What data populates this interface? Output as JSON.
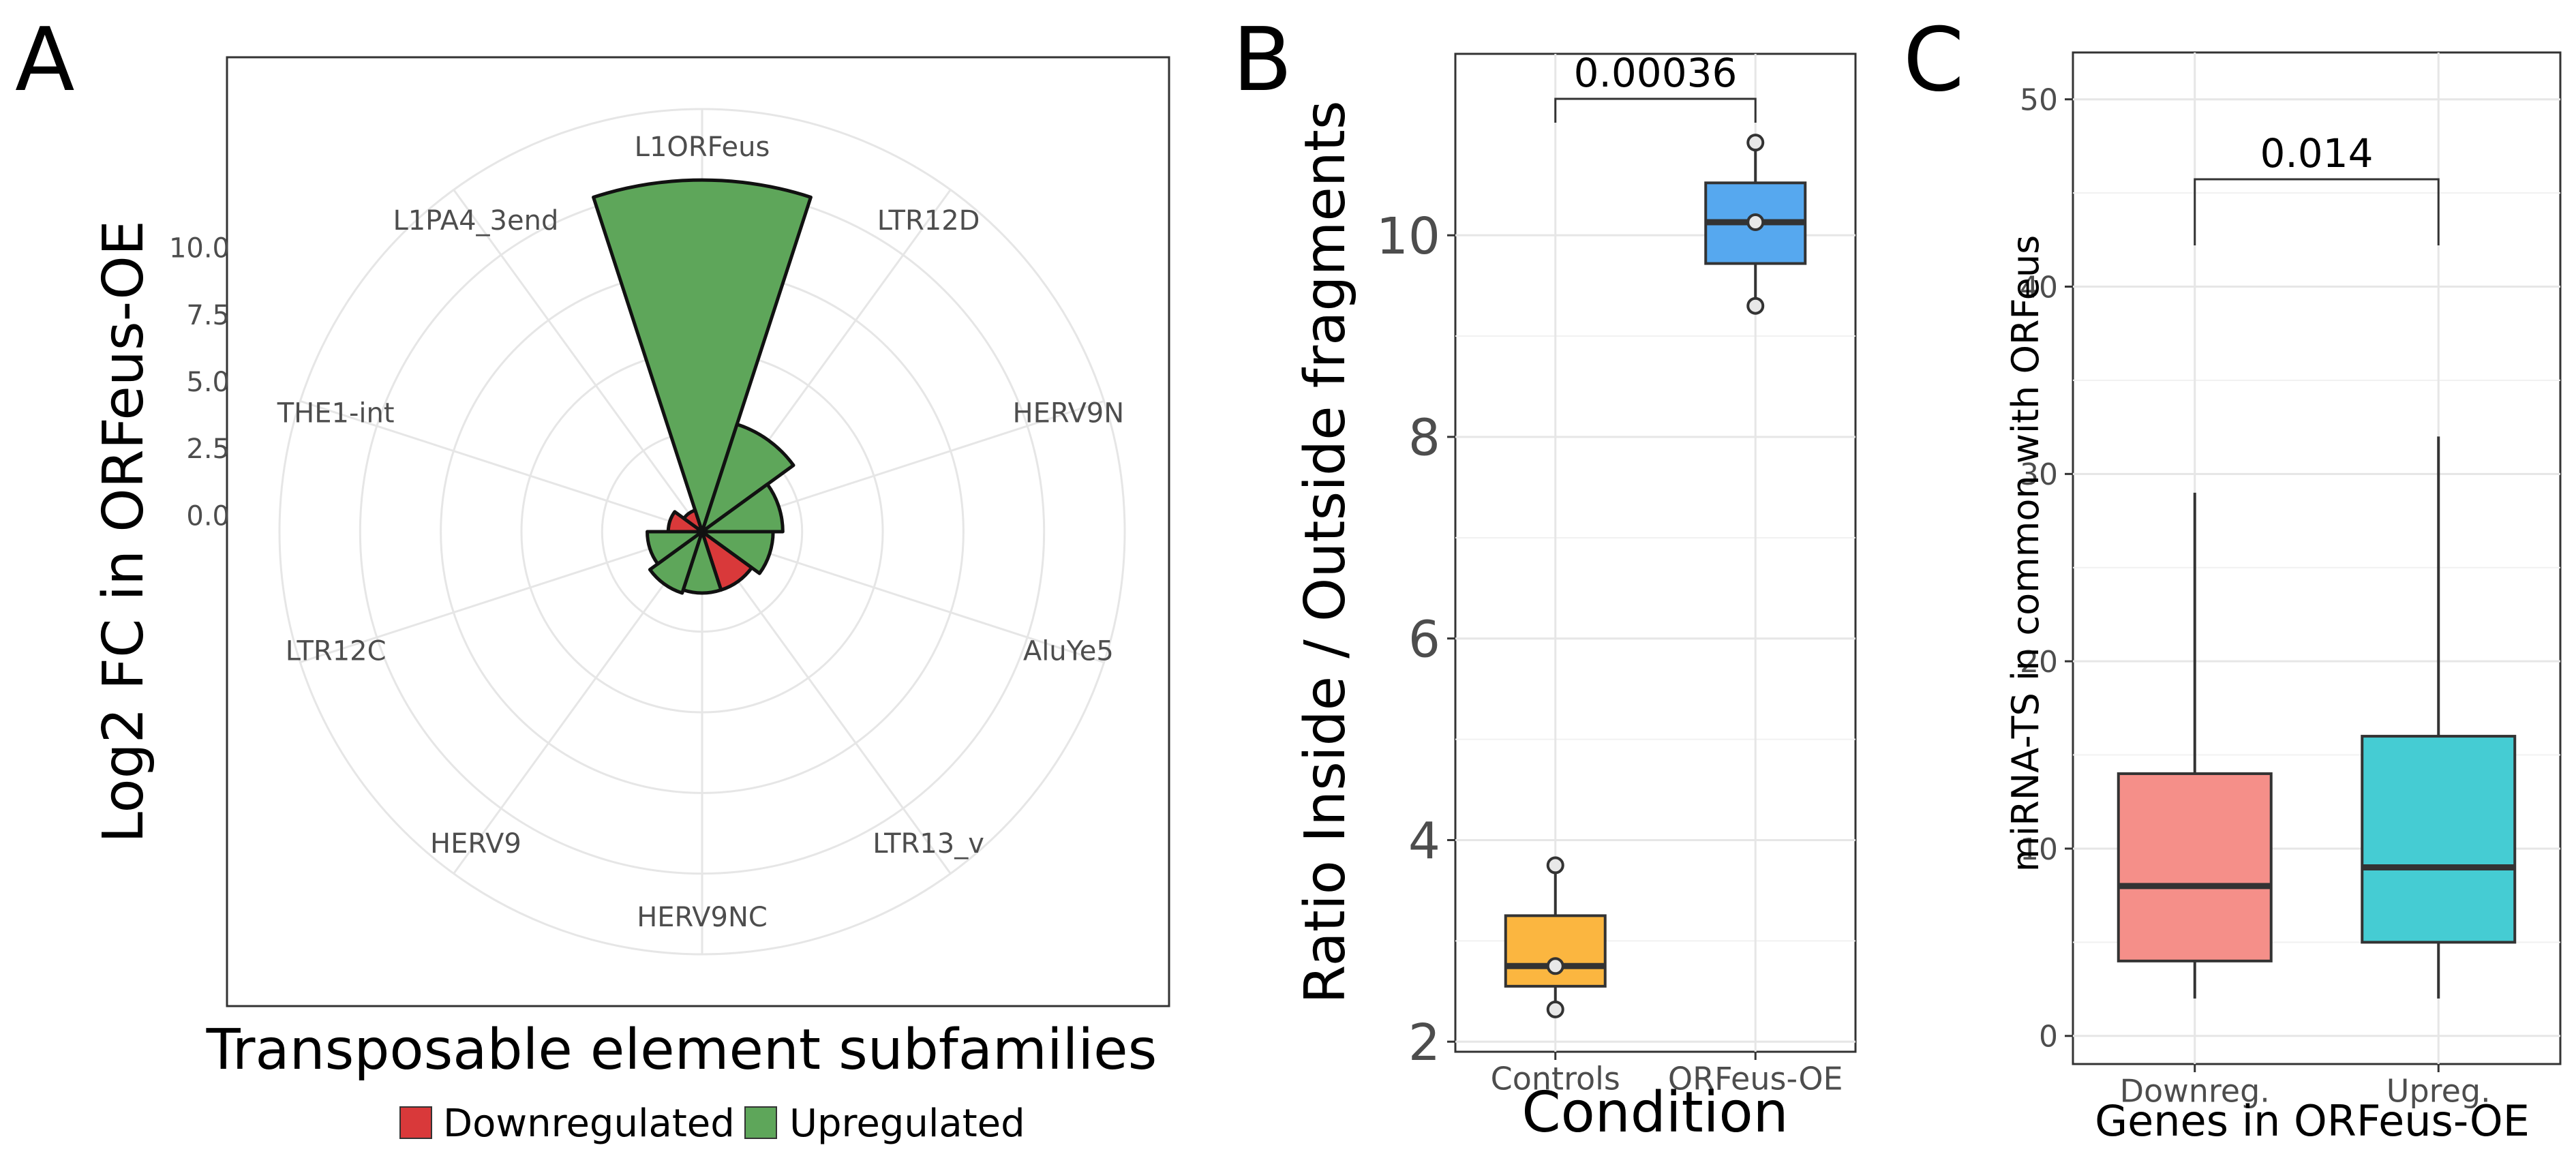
{
  "colors": {
    "upregulated": "#5ea65a",
    "downregulated": "#d9393a",
    "controls": "#fbb640",
    "orfeus_oe": "#56a8ef",
    "downreg": "#f58f89",
    "upreg": "#45ccd3",
    "grid": "#e6e6e6",
    "axis_text": "#4d4d4d"
  },
  "chart_data": [
    {
      "panel": "A",
      "type": "bar",
      "coord": "polar",
      "xlabel": "Transposable element subfamilies",
      "ylabel": "Log2 FC in ORFeus-OE",
      "r_ticks": [
        "10.0",
        "7.5",
        "5.0",
        "2.5",
        "0.0"
      ],
      "r_tick_values": [
        10,
        7.5,
        5,
        2.5,
        0
      ],
      "r_axis": {
        "inner_offset": 0.6,
        "max": 12.5
      },
      "categories": [
        "L1ORFeus",
        "LTR12D",
        "HERV9N",
        "AluYe5",
        "LTR13_v",
        "HERV9NC",
        "HERV9",
        "LTR12C",
        "THE1-int",
        "L1PA4_3end"
      ],
      "values": [
        10.3,
        2.9,
        1.9,
        1.6,
        1.3,
        1.3,
        1.4,
        1.1,
        0.45,
        0.1
      ],
      "regulation": [
        "Upregulated",
        "Upregulated",
        "Upregulated",
        "Upregulated",
        "Downregulated",
        "Upregulated",
        "Upregulated",
        "Upregulated",
        "Downregulated",
        "Downregulated"
      ],
      "legend": {
        "position": "bottom",
        "items": [
          {
            "label": "Downregulated",
            "color_key": "downregulated"
          },
          {
            "label": "Upregulated",
            "color_key": "upregulated"
          }
        ]
      }
    },
    {
      "panel": "B",
      "type": "box",
      "xlabel": "Condition",
      "ylabel": "Ratio Inside / Outside fragments",
      "ylim": [
        1.9,
        11.8
      ],
      "y_ticks": [
        2,
        4,
        6,
        8,
        10
      ],
      "categories": [
        "Controls",
        "ORFeus-OE"
      ],
      "boxes": [
        {
          "name": "Controls",
          "min": 2.32,
          "q1": 2.55,
          "median": 2.75,
          "q3": 3.25,
          "max": 3.75,
          "points": [
            2.32,
            2.75,
            3.75
          ]
        },
        {
          "name": "ORFeus-OE",
          "min": 9.3,
          "q1": 9.72,
          "median": 10.13,
          "q3": 10.52,
          "max": 10.92,
          "points": [
            9.3,
            10.13,
            10.92
          ]
        }
      ],
      "annotation": {
        "text": "0.00036",
        "from": "Controls",
        "to": "ORFeus-OE"
      }
    },
    {
      "panel": "C",
      "type": "box",
      "xlabel": "Genes in ORFeus-OE",
      "ylabel": "miRNA-TS in common with ORFeus",
      "ylim": [
        -1.5,
        52.5
      ],
      "y_ticks": [
        0,
        10,
        20,
        30,
        40,
        50
      ],
      "categories": [
        "Downreg.",
        "Upreg."
      ],
      "boxes": [
        {
          "name": "Downreg.",
          "min": 2,
          "q1": 4,
          "median": 8,
          "q3": 14,
          "max": 29
        },
        {
          "name": "Upreg.",
          "min": 2,
          "q1": 5,
          "median": 9,
          "q3": 16,
          "max": 32
        }
      ],
      "annotation": {
        "text": "0.014",
        "from": "Downreg.",
        "to": "Upreg."
      }
    }
  ],
  "panel_labels": [
    "A",
    "B",
    "C"
  ]
}
